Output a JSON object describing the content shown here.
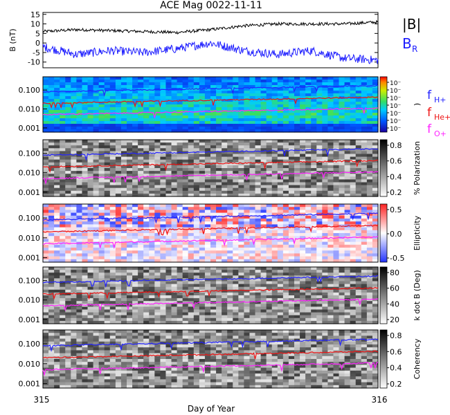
{
  "title": "ACE Mag 0022-11-11",
  "chart_data": [
    {
      "type": "line",
      "panel": "magnetic-field",
      "ylabel": "B (nT)",
      "ylim": [
        -13,
        16
      ],
      "yticks": [
        15,
        10,
        5,
        0,
        -5,
        -10
      ],
      "series": [
        {
          "name": "|B|",
          "color": "#000000",
          "x": [
            315.0,
            315.1,
            315.2,
            315.3,
            315.4,
            315.5,
            315.6,
            315.7,
            315.8,
            315.9,
            316.0
          ],
          "values": [
            6,
            7,
            6.5,
            6,
            5.5,
            7,
            9,
            10,
            10,
            10,
            11
          ]
        },
        {
          "name": "B_R",
          "color": "#1a1aff",
          "x": [
            315.0,
            315.1,
            315.2,
            315.3,
            315.4,
            315.5,
            315.6,
            315.7,
            315.8,
            315.9,
            316.0
          ],
          "values": [
            -2,
            -6,
            -4,
            -5,
            -3,
            0,
            -4,
            -6,
            -4,
            -8,
            -9
          ]
        }
      ]
    },
    {
      "type": "heatmap",
      "panel": "power",
      "ylabel": "",
      "yticks": [
        "0.100",
        "0.010",
        "0.001"
      ],
      "colorbar_ticks": [
        "10⁻",
        "10⁻",
        "10⁻",
        "10⁻",
        "10⁻",
        "10⁻",
        "10⁻"
      ],
      "colorbar_label": ")"
    },
    {
      "type": "heatmap",
      "panel": "polarization",
      "yticks": [
        "0.100",
        "0.010",
        "0.001"
      ],
      "colorbar_ticks": [
        "0.8",
        "0.6",
        "0.4",
        "0.2"
      ],
      "colorbar_label": "% Polarization"
    },
    {
      "type": "heatmap",
      "panel": "ellipticity",
      "yticks": [
        "0.100",
        "0.010",
        "0.001"
      ],
      "colorbar_ticks": [
        "0.5",
        "0.0",
        "-0.5"
      ],
      "colorbar_label": "Ellipticity"
    },
    {
      "type": "heatmap",
      "panel": "k-dot-b",
      "yticks": [
        "0.100",
        "0.010",
        "0.001"
      ],
      "colorbar_ticks": [
        "80",
        "60",
        "40",
        "20"
      ],
      "colorbar_label": "k dot B (Deg)"
    },
    {
      "type": "heatmap",
      "panel": "coherency",
      "yticks": [
        "0.100",
        "0.010",
        "0.001"
      ],
      "colorbar_ticks": [
        "0.8",
        "0.6",
        "0.4",
        "0.2"
      ],
      "colorbar_label": "Coherency"
    }
  ],
  "gyrofrequency_lines": [
    {
      "name": "f_H+",
      "color": "#2222ff",
      "start": 0.08,
      "end": 0.17
    },
    {
      "name": "f_He+",
      "color": "#ee1111",
      "start": 0.02,
      "end": 0.042
    },
    {
      "name": "f_O+",
      "color": "#ff22ff",
      "start": 0.005,
      "end": 0.011
    }
  ],
  "legend": {
    "b_mag": "|B|",
    "b_r_main": "B",
    "b_r_sub": "R",
    "fh_main": "f",
    "fh_sub": "H+",
    "fhe_main": "f",
    "fhe_sub": "He+",
    "fo_main": "f",
    "fo_sub": "O+"
  },
  "x_axis": {
    "label": "Day of Year",
    "start": "315",
    "end": "316",
    "range": [
      315,
      316
    ]
  }
}
